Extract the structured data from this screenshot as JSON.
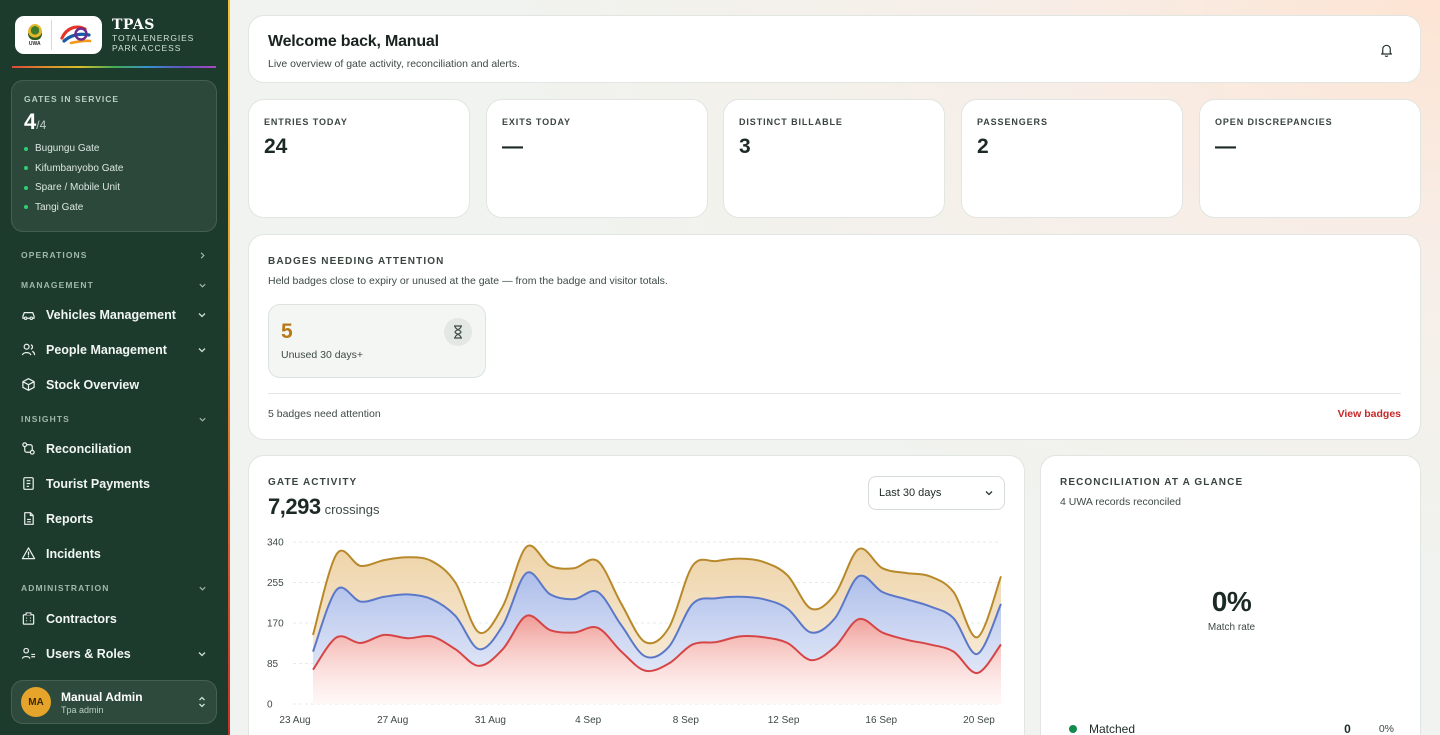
{
  "brand": {
    "title": "TPAS",
    "subtitle_line1": "TOTALENERGIES",
    "subtitle_line2": "PARK ACCESS",
    "uwa_text": "UWA"
  },
  "gates": {
    "label": "GATES IN SERVICE",
    "count": "4",
    "total": "/4",
    "items": [
      "Bugungu Gate",
      "Kifumbanyobo Gate",
      "Spare / Mobile Unit",
      "Tangi Gate"
    ],
    "status_color": "#2fcf76"
  },
  "nav": {
    "operations": "OPERATIONS",
    "management": "MANAGEMENT",
    "vehicles": "Vehicles Management",
    "people": "People Management",
    "stock": "Stock Overview",
    "insights": "INSIGHTS",
    "reconciliation": "Reconciliation",
    "payments": "Tourist Payments",
    "reports": "Reports",
    "incidents": "Incidents",
    "administration": "ADMINISTRATION",
    "contractors": "Contractors",
    "users": "Users & Roles"
  },
  "user": {
    "initials": "MA",
    "name": "Manual Admin",
    "role": "Tpa admin"
  },
  "welcome": {
    "title": "Welcome back, Manual",
    "subtitle": "Live overview of gate activity, reconciliation and alerts."
  },
  "stats": [
    {
      "label": "ENTRIES TODAY",
      "value": "24"
    },
    {
      "label": "EXITS TODAY",
      "value": "—"
    },
    {
      "label": "DISTINCT BILLABLE",
      "value": "3"
    },
    {
      "label": "PASSENGERS",
      "value": "2"
    },
    {
      "label": "OPEN DISCREPANCIES",
      "value": "—"
    }
  ],
  "badges": {
    "title": "BADGES NEEDING ATTENTION",
    "subtitle": "Held badges close to expiry or unused at the gate — from the badge and visitor totals.",
    "tile_value": "5",
    "tile_caption": "Unused 30 days+",
    "footer": "5 badges need attention",
    "link": "View badges"
  },
  "gate_activity": {
    "title": "GATE ACTIVITY",
    "total": "7,293",
    "unit": "crossings",
    "range": "Last 30 days"
  },
  "chart_data": {
    "type": "area",
    "x_labels": [
      "23 Aug",
      "27 Aug",
      "31 Aug",
      "4 Sep",
      "8 Sep",
      "12 Sep",
      "16 Sep",
      "20 Sep"
    ],
    "y_ticks": [
      "340",
      "255",
      "170",
      "85",
      "0"
    ],
    "ylim": [
      0,
      340
    ],
    "x": [
      "23 Aug",
      "24 Aug",
      "25 Aug",
      "26 Aug",
      "27 Aug",
      "28 Aug",
      "29 Aug",
      "30 Aug",
      "31 Aug",
      "1 Sep",
      "2 Sep",
      "3 Sep",
      "4 Sep",
      "5 Sep",
      "6 Sep",
      "7 Sep",
      "8 Sep",
      "9 Sep",
      "10 Sep",
      "11 Sep",
      "12 Sep",
      "13 Sep",
      "14 Sep",
      "15 Sep",
      "16 Sep",
      "17 Sep",
      "18 Sep",
      "19 Sep",
      "20 Sep",
      "21 Sep"
    ],
    "series": [
      {
        "color": "#d64545",
        "values": [
          72,
          140,
          128,
          145,
          138,
          142,
          115,
          80,
          115,
          185,
          155,
          150,
          160,
          110,
          70,
          85,
          125,
          130,
          142,
          140,
          128,
          92,
          120,
          178,
          150,
          135,
          125,
          110,
          65,
          125
        ]
      },
      {
        "color": "#5b78c8",
        "values": [
          110,
          240,
          215,
          225,
          230,
          220,
          185,
          115,
          165,
          275,
          230,
          220,
          235,
          165,
          100,
          120,
          210,
          222,
          225,
          220,
          200,
          150,
          180,
          268,
          235,
          220,
          205,
          180,
          105,
          210
        ]
      },
      {
        "color": "#b8892a",
        "values": [
          145,
          315,
          290,
          302,
          308,
          300,
          255,
          150,
          205,
          330,
          290,
          285,
          300,
          210,
          130,
          160,
          290,
          300,
          305,
          298,
          270,
          200,
          230,
          325,
          285,
          275,
          268,
          235,
          140,
          268
        ]
      }
    ],
    "grid": true,
    "legend": "none"
  },
  "reconciliation": {
    "title": "RECONCILIATION AT A GLANCE",
    "subtitle": "4 UWA records reconciled",
    "rate": "0%",
    "rate_label": "Match rate",
    "legend": [
      {
        "label": "Matched",
        "count": "0",
        "pct": "0%",
        "color": "#138a4e"
      }
    ]
  }
}
